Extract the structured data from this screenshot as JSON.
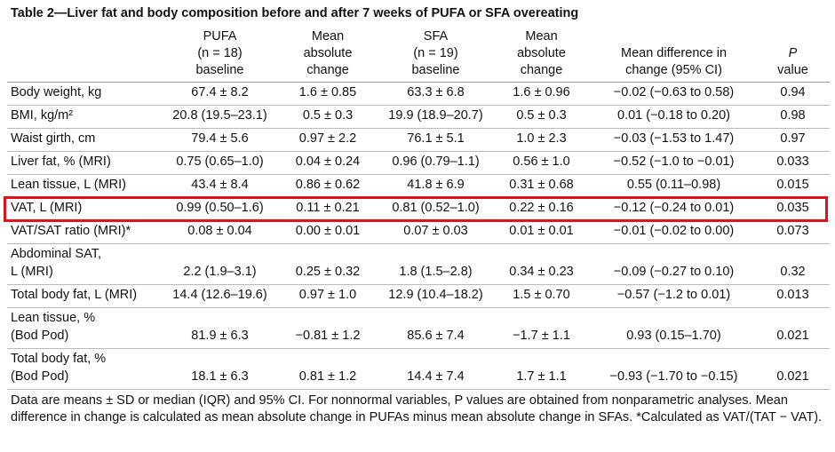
{
  "header": {
    "title": "Table 2—Liver fat and body composition before and after 7 weeks of PUFA or SFA overeating"
  },
  "table": {
    "columns": [
      [
        "PUFA",
        "(n = 18)",
        "baseline"
      ],
      [
        "Mean",
        "absolute",
        "change"
      ],
      [
        "SFA",
        "(n = 19)",
        "baseline"
      ],
      [
        "Mean",
        "absolute",
        "change"
      ],
      [
        "Mean difference in",
        "change (95% CI)"
      ],
      [
        "P",
        "value"
      ]
    ],
    "rows": [
      {
        "label": [
          "Body weight, kg"
        ],
        "cells": [
          "67.4 ± 8.2",
          "1.6 ± 0.85",
          "63.3 ± 6.8",
          "1.6 ± 0.96",
          "−0.02 (−0.63 to 0.58)",
          "0.94"
        ]
      },
      {
        "label": [
          "BMI, kg/m²"
        ],
        "cells": [
          "20.8 (19.5–23.1)",
          "0.5 ± 0.3",
          "19.9 (18.9–20.7)",
          "0.5 ± 0.3",
          "0.01 (−0.18 to 0.20)",
          "0.98"
        ]
      },
      {
        "label": [
          "Waist girth, cm"
        ],
        "cells": [
          "79.4 ± 5.6",
          "0.97 ± 2.2",
          "76.1 ± 5.1",
          "1.0 ± 2.3",
          "−0.03 (−1.53 to 1.47)",
          "0.97"
        ]
      },
      {
        "label": [
          "Liver fat, % (MRI)"
        ],
        "cells": [
          "0.75 (0.65–1.0)",
          "0.04 ± 0.24",
          "0.96 (0.79–1.1)",
          "0.56 ± 1.0",
          "−0.52 (−1.0 to −0.01)",
          "0.033"
        ]
      },
      {
        "label": [
          "Lean tissue, L (MRI)"
        ],
        "cells": [
          "43.4 ± 8.4",
          "0.86 ± 0.62",
          "41.8 ± 6.9",
          "0.31 ± 0.68",
          "0.55 (0.11–0.98)",
          "0.015"
        ]
      },
      {
        "label": [
          "VAT, L (MRI)"
        ],
        "cells": [
          "0.99 (0.50–1.6)",
          "0.11 ± 0.21",
          "0.81 (0.52–1.0)",
          "0.22 ± 0.16",
          "−0.12 (−0.24 to 0.01)",
          "0.035"
        ]
      },
      {
        "label": [
          "VAT/SAT ratio (MRI)*"
        ],
        "cells": [
          "0.08 ± 0.04",
          "0.00 ± 0.01",
          "0.07 ± 0.03",
          "0.01 ± 0.01",
          "−0.01 (−0.02 to 0.00)",
          "0.073"
        ]
      },
      {
        "label": [
          "Abdominal SAT,",
          "L (MRI)"
        ],
        "cells": [
          "2.2 (1.9–3.1)",
          "0.25 ± 0.32",
          "1.8 (1.5–2.8)",
          "0.34 ± 0.23",
          "−0.09 (−0.27 to 0.10)",
          "0.32"
        ]
      },
      {
        "label": [
          "Total body fat, L (MRI)"
        ],
        "cells": [
          "14.4 (12.6–19.6)",
          "0.97 ± 1.0",
          "12.9 (10.4–18.2)",
          "1.5 ± 0.70",
          "−0.57 (−1.2 to 0.01)",
          "0.013"
        ]
      },
      {
        "label": [
          "Lean tissue, %",
          "(Bod Pod)"
        ],
        "cells": [
          "81.9 ± 6.3",
          "−0.81 ± 1.2",
          "85.6 ± 7.4",
          "−1.7 ± 1.1",
          "0.93 (0.15–1.70)",
          "0.021"
        ]
      },
      {
        "label": [
          "Total body fat, %",
          "(Bod Pod)"
        ],
        "cells": [
          "18.1 ± 6.3",
          "0.81 ± 1.2",
          "14.4 ± 7.4",
          "1.7 ± 1.1",
          "−0.93 (−1.70 to −0.15)",
          "0.021"
        ]
      }
    ]
  },
  "footnote": "Data are means ± SD or median (IQR) and 95% CI. For nonnormal variables, P values are obtained from nonparametric analyses. Mean difference in change is calculated as mean absolute change in PUFAs minus mean absolute change in SFAs. *Calculated as VAT/(TAT − VAT)."
}
